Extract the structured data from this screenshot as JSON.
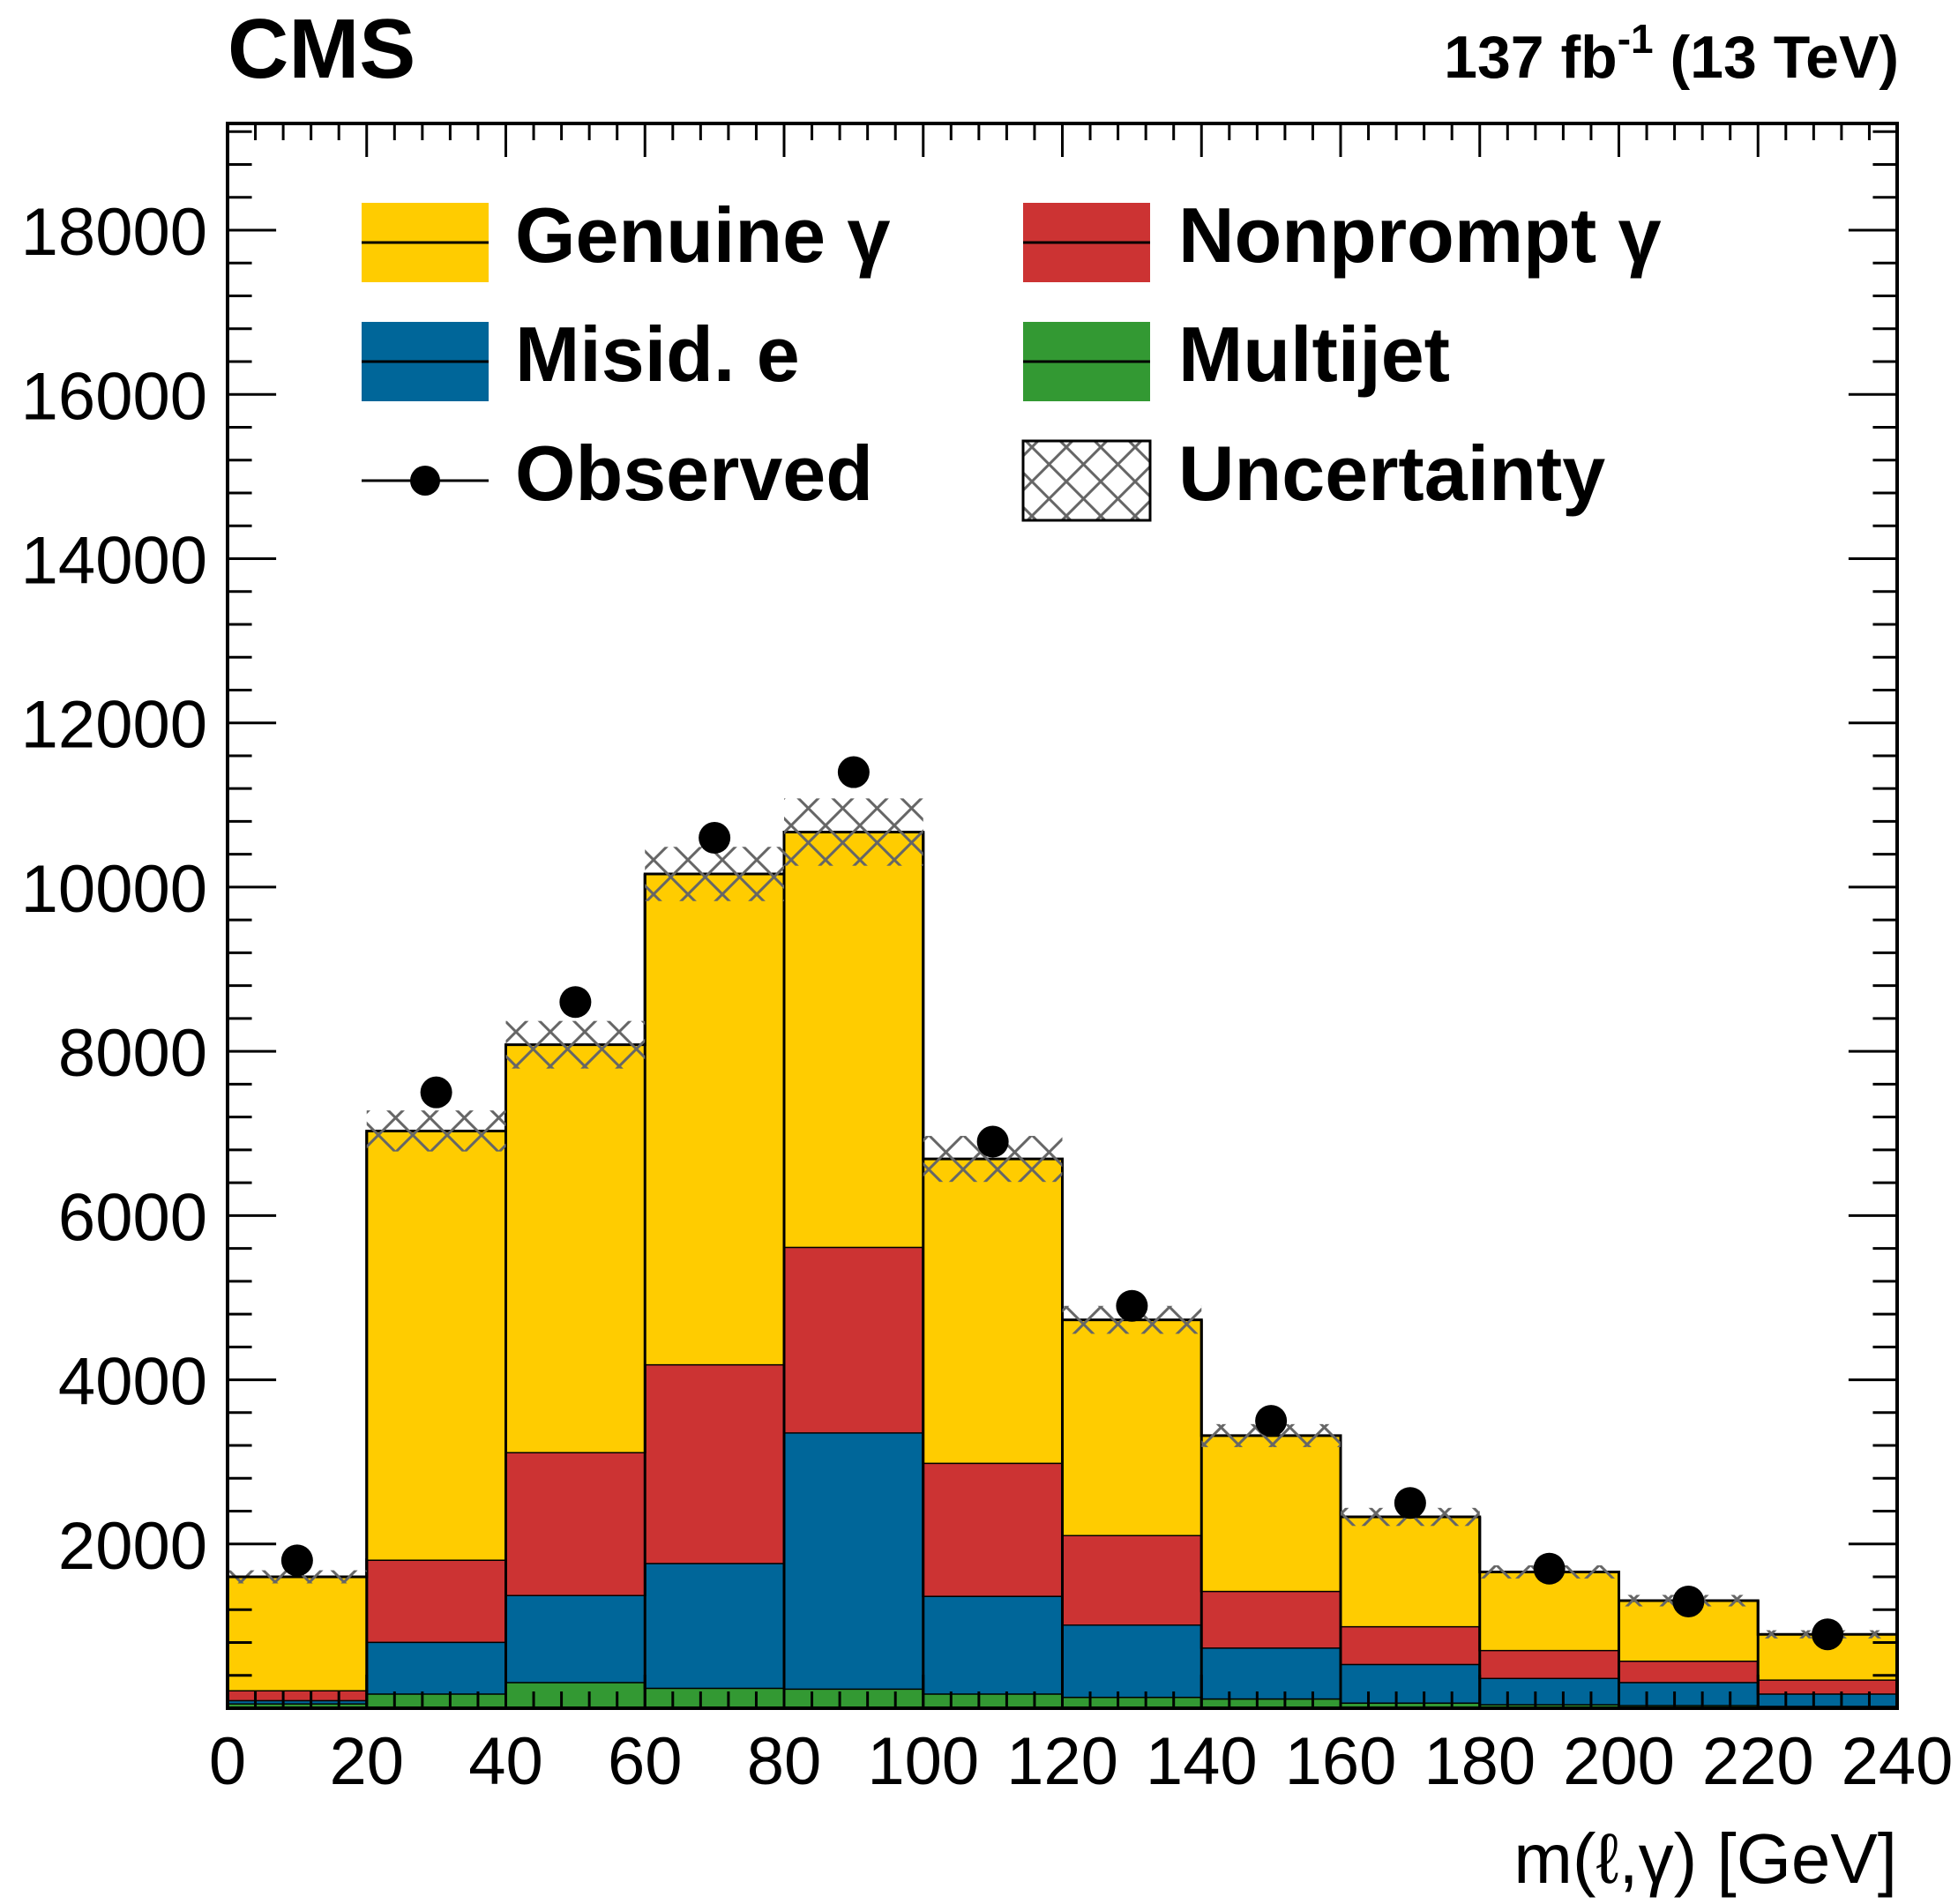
{
  "header": {
    "experiment": "CMS",
    "lumi": "137 fb",
    "lumi_exponent": "-1",
    "energy": "(13 TeV)"
  },
  "legend": {
    "genuine": "Genuine γ",
    "nonprompt": "Nonprompt γ",
    "misid": "Misid. e",
    "multijet": "Multijet",
    "observed": "Observed",
    "uncertainty": "Uncertainty"
  },
  "colors": {
    "genuine": "#ffcc00",
    "nonprompt": "#cc3333",
    "misid": "#006699",
    "multijet": "#339933",
    "hatch": "#666666"
  },
  "chart_data": {
    "type": "bar",
    "stacked": true,
    "xlabel": "m(ℓ,γ) [GeV]",
    "ylabel": "",
    "xlim": [
      0,
      240
    ],
    "ylim": [
      0,
      19300
    ],
    "bin_edges": [
      0,
      20,
      40,
      60,
      80,
      100,
      120,
      140,
      160,
      180,
      200,
      220,
      240
    ],
    "x_ticks": [
      "0",
      "20",
      "40",
      "60",
      "80",
      "100",
      "120",
      "140",
      "160",
      "180",
      "200",
      "220",
      "240"
    ],
    "y_ticks": [
      "2000",
      "4000",
      "6000",
      "8000",
      "10000",
      "12000",
      "14000",
      "16000",
      "18000"
    ],
    "series": [
      {
        "name": "Multijet",
        "values": [
          60,
          180,
          320,
          250,
          240,
          180,
          140,
          120,
          70,
          50,
          40,
          30
        ]
      },
      {
        "name": "Misid. e",
        "values": [
          40,
          630,
          1060,
          1520,
          3120,
          1190,
          880,
          620,
          470,
          320,
          280,
          150
        ]
      },
      {
        "name": "Nonprompt γ",
        "values": [
          120,
          1000,
          1740,
          2420,
          2260,
          1620,
          1090,
          690,
          460,
          340,
          260,
          170
        ]
      },
      {
        "name": "Genuine γ",
        "values": [
          1380,
          5220,
          4960,
          5970,
          5050,
          3700,
          2620,
          1890,
          1330,
          950,
          730,
          550
        ]
      }
    ],
    "total_uncertainty": [
      80,
      250,
      290,
      330,
      410,
      280,
      170,
      140,
      110,
      80,
      70,
      50
    ],
    "observed": [
      1800,
      7500,
      8600,
      10600,
      11400,
      6900,
      4900,
      3500,
      2500,
      1700,
      1300,
      900
    ]
  }
}
